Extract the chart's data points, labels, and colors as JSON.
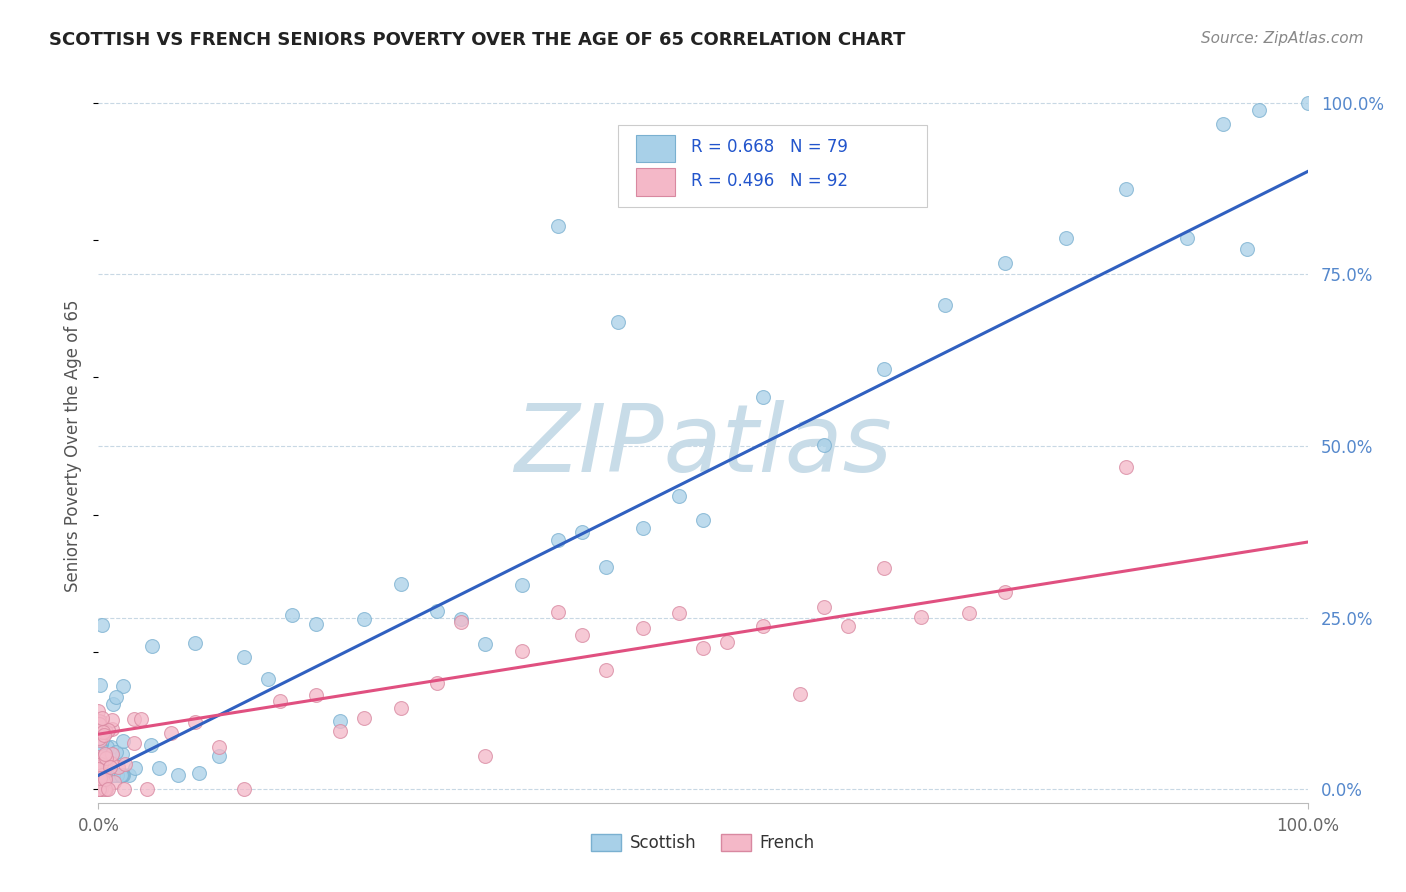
{
  "title": "SCOTTISH VS FRENCH SENIORS POVERTY OVER THE AGE OF 65 CORRELATION CHART",
  "source": "Source: ZipAtlas.com",
  "ylabel": "Seniors Poverty Over the Age of 65",
  "xlim": [
    0,
    1
  ],
  "ylim": [
    -0.02,
    1.02
  ],
  "scottish_color": "#a8d0e8",
  "french_color": "#f4b8c8",
  "scottish_edge": "#7ab0d0",
  "french_edge": "#d888a0",
  "trend_blue": "#3060c0",
  "trend_pink": "#e05080",
  "watermark_color": "#c8dce8",
  "legend_R_scottish": "R = 0.668",
  "legend_N_scottish": "N = 79",
  "legend_R_french": "R = 0.496",
  "legend_N_french": "N = 92",
  "background_color": "#ffffff",
  "grid_color": "#c8d8e4"
}
